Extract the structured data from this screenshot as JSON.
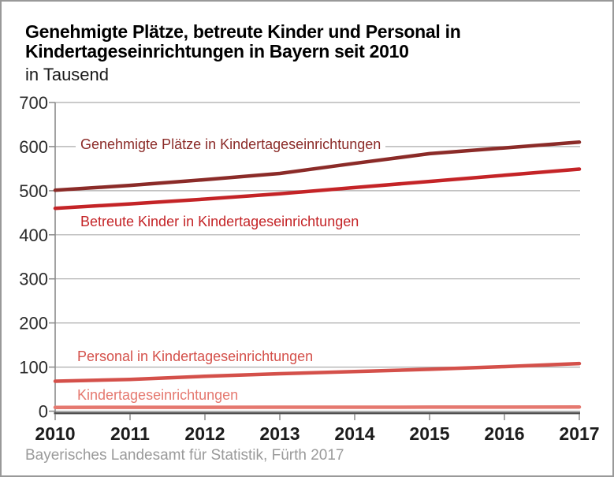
{
  "header": {
    "title_lines": [
      "Genehmigte Plätze, betreute Kinder und Personal in",
      "Kindertageseinrichtungen in Bayern seit 2010"
    ],
    "subtitle": "in Tausend"
  },
  "footer": {
    "source": "Bayerisches Landesamt für Statistik, Fürth 2017"
  },
  "colors": {
    "background": "#ffffff",
    "frame_border": "#999999",
    "gridline": "#ababab",
    "y_axis": "#8a8a8a",
    "x_axis": "#4f4f4f",
    "tick": "#8a8a8a",
    "tick_label": "#2b2b2b",
    "footer_text": "#9a9a9a"
  },
  "chart_data": {
    "type": "line",
    "title": "Genehmigte Plätze, betreute Kinder und Personal in Kindertageseinrichtungen in Bayern seit 2010",
    "subtitle": "in Tausend",
    "unit": "Tausend",
    "xlabel": "",
    "ylabel": "in Tausend",
    "x": [
      2010,
      2011,
      2012,
      2013,
      2014,
      2015,
      2016,
      2017
    ],
    "xlim": [
      2010,
      2017
    ],
    "ylim": [
      0,
      700
    ],
    "yticks": [
      0,
      100,
      200,
      300,
      400,
      500,
      600,
      700
    ],
    "grid": "horizontal",
    "legend_position": "inline-labels",
    "series": [
      {
        "name": "Genehmigte Plätze in Kindertageseinrichtungen",
        "color": "#8b2b28",
        "values": [
          501,
          512,
          525,
          539,
          562,
          584,
          597,
          610
        ]
      },
      {
        "name": "Betreute Kinder in Kindertageseinrichtungen",
        "color": "#c42427",
        "values": [
          460,
          470,
          481,
          493,
          507,
          521,
          535,
          549
        ]
      },
      {
        "name": "Personal in Kindertageseinrichtungen",
        "color": "#d4504a",
        "values": [
          68,
          72,
          79,
          85,
          90,
          95,
          101,
          108
        ]
      },
      {
        "name": "Kindertageseinrichtungen",
        "color": "#e5786f",
        "values": [
          8.6,
          8.7,
          8.8,
          8.9,
          9.0,
          9.1,
          9.2,
          9.4
        ]
      }
    ]
  }
}
